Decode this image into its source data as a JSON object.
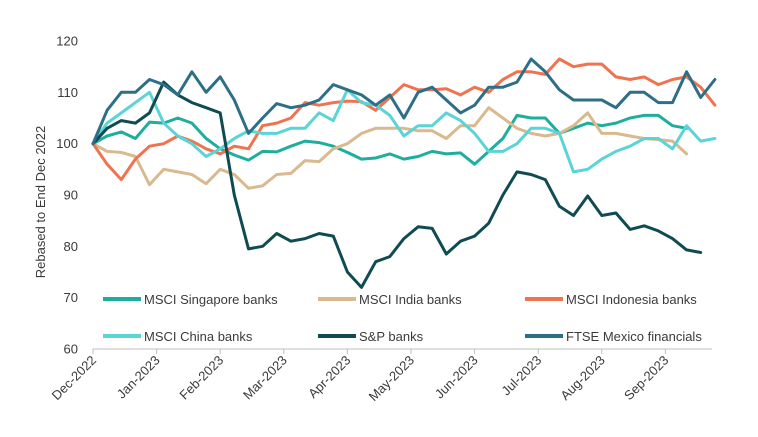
{
  "chart_data": {
    "type": "line",
    "ylabel": "Rebased to End Dec 2022",
    "xlabel": "",
    "ylim": [
      60,
      120
    ],
    "yticks": [
      60,
      70,
      80,
      90,
      100,
      110,
      120
    ],
    "x_tick_labels": [
      "Dec-2022",
      "Jan-2023",
      "Feb-2023",
      "Mar-2023",
      "Apr-2023",
      "May-2023",
      "Jun-2023",
      "Jul-2023",
      "Aug-2023",
      "Sep-2023"
    ],
    "points_per_month": 4.5,
    "grid": false,
    "legend": "inside-bottom",
    "series": [
      {
        "name": "MSCI Singapore banks",
        "color": "#1fae9e",
        "values": [
          100,
          101.5,
          102.3,
          101,
          104.2,
          104,
          105,
          104,
          101,
          99,
          97.8,
          96.8,
          98.5,
          98.4,
          99.5,
          100.5,
          100.2,
          99.5,
          98.3,
          97,
          97.2,
          98,
          97,
          97.5,
          98.5,
          98,
          98.2,
          96,
          98.5,
          101,
          105.5,
          105,
          105,
          102,
          103,
          104,
          103.5,
          104,
          105,
          105.5,
          105.5,
          103.5,
          103
        ]
      },
      {
        "name": "MSCI India banks",
        "color": "#d9b98e",
        "values": [
          100,
          98.5,
          98.3,
          97.5,
          92,
          95,
          94.5,
          94,
          92.2,
          95,
          94,
          91.3,
          91.8,
          94,
          94.2,
          96.7,
          96.5,
          99,
          100,
          102,
          103,
          103,
          103,
          102.5,
          102.5,
          101,
          103.5,
          103.5,
          107,
          105,
          103,
          102,
          101.5,
          102,
          103.5,
          106,
          102,
          102,
          101.5,
          101,
          100.8,
          100.5,
          98
        ]
      },
      {
        "name": "MSCI Indonesia banks",
        "color": "#f07350",
        "values": [
          100,
          96,
          93,
          97,
          99.5,
          100,
          101.5,
          100.5,
          99,
          98,
          99.5,
          99,
          103.5,
          104,
          105,
          108,
          107.5,
          108,
          108.3,
          108.2,
          106.5,
          109,
          111.5,
          110.5,
          110.5,
          110.7,
          109.5,
          111,
          110,
          112.5,
          114,
          114,
          113.5,
          116.5,
          115,
          115.5,
          115.5,
          113,
          112.5,
          113,
          111.5,
          112.5,
          113,
          111,
          107.5
        ]
      },
      {
        "name": "MSCI China banks",
        "color": "#5bd4d8",
        "values": [
          100,
          104,
          106,
          108,
          110,
          104,
          101.5,
          100,
          97.5,
          99,
          101,
          102.5,
          102,
          102,
          103,
          103,
          106,
          104.5,
          110.5,
          108,
          107.5,
          105.5,
          101.5,
          103.5,
          103.5,
          106,
          104.5,
          102,
          98.5,
          98.5,
          100,
          103,
          103,
          102,
          94.5,
          95,
          97,
          98.5,
          99.5,
          101,
          101,
          99,
          103.5,
          100.5,
          101
        ]
      },
      {
        "name": "S&P banks",
        "color": "#0f4c52",
        "values": [
          100,
          103,
          104.5,
          104,
          106,
          112,
          109.5,
          108,
          107,
          106,
          90,
          79.5,
          80,
          82.5,
          81,
          81.5,
          82.5,
          82,
          75,
          72,
          77,
          78,
          81.5,
          83.8,
          83.5,
          78.5,
          81,
          82,
          84.5,
          90,
          94.5,
          94,
          93,
          87.8,
          86,
          89.8,
          86,
          86.5,
          83.3,
          84,
          83,
          81.5,
          79.3,
          78.8
        ]
      },
      {
        "name": "FTSE Mexico financials",
        "color": "#2d6f86",
        "values": [
          100,
          106.5,
          110,
          110,
          112.5,
          111.5,
          109.5,
          114,
          110,
          113,
          108.5,
          102,
          105,
          107.8,
          107,
          107.5,
          108.5,
          111.5,
          110.5,
          109.5,
          107.5,
          109.5,
          105,
          110,
          111,
          108.5,
          106,
          107.5,
          111,
          111,
          112,
          116.5,
          114,
          110.5,
          108.5,
          108.5,
          108.5,
          107,
          110,
          110,
          108,
          108,
          114,
          109,
          112.5
        ]
      }
    ]
  }
}
